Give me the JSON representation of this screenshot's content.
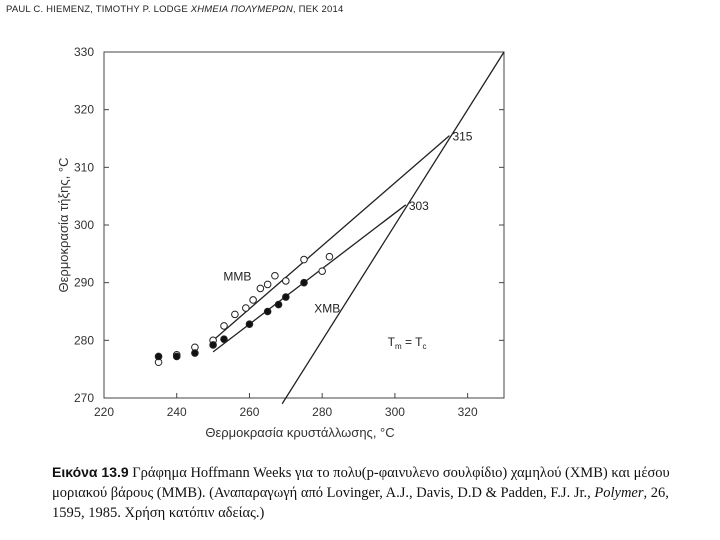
{
  "header": {
    "authors": "PAUL C. HIEMENZ, TIMOTHY P. LODGE ",
    "book_title": "ΧΗΜΕΙΑ ΠΟΛΥΜΕΡΩΝ",
    "publisher": ", ΠΕΚ 2014"
  },
  "chart_data": {
    "type": "scatter",
    "xlabel": "Θερμοκρασία κρυστάλλωσης, °C",
    "ylabel": "Θερμοκρασία τήξης, °C",
    "xlim": [
      220,
      330
    ],
    "ylim": [
      270,
      330
    ],
    "x_ticks": [
      220,
      240,
      260,
      280,
      300,
      320
    ],
    "y_ticks": [
      270,
      280,
      290,
      300,
      310,
      320,
      330
    ],
    "grid": false,
    "series": [
      {
        "name": "MMB",
        "marker": "open-circle",
        "points": [
          [
            235,
            276.2
          ],
          [
            240,
            277.5
          ],
          [
            245,
            278.8
          ],
          [
            250,
            280
          ],
          [
            253,
            282.5
          ],
          [
            256,
            284.5
          ],
          [
            259,
            285.6
          ],
          [
            261,
            287
          ],
          [
            263,
            289
          ],
          [
            265,
            289.7
          ],
          [
            267,
            291.2
          ],
          [
            270,
            290.3
          ],
          [
            275,
            294
          ],
          [
            280,
            292
          ],
          [
            282,
            294.5
          ]
        ]
      },
      {
        "name": "XMB",
        "marker": "filled-circle",
        "points": [
          [
            235,
            277.2
          ],
          [
            240,
            277.2
          ],
          [
            245,
            277.8
          ],
          [
            250,
            279.2
          ],
          [
            253,
            280.2
          ],
          [
            260,
            282.8
          ],
          [
            265,
            285
          ],
          [
            268,
            286.2
          ],
          [
            270,
            287.5
          ],
          [
            275,
            290
          ]
        ]
      }
    ],
    "lines": [
      {
        "name": "MMB",
        "from": [
          250,
          280
        ],
        "to": [
          315,
          315.5
        ]
      },
      {
        "name": "XMB",
        "from": [
          250,
          278
        ],
        "to": [
          303,
          303.5
        ]
      },
      {
        "name": "Tm = Tc",
        "from": [
          269,
          269
        ],
        "to": [
          330,
          330
        ]
      }
    ],
    "annotations": [
      {
        "text": "315",
        "x": 315,
        "y": 315.5
      },
      {
        "text": "303",
        "x": 303,
        "y": 303.5
      },
      {
        "text": "MMB",
        "x": 252,
        "y": 291.2
      },
      {
        "text": "XMB",
        "x": 277,
        "y": 285.7
      }
    ],
    "equation_label": {
      "lhs_main": "T",
      "lhs_sub": "m",
      "equals": " = ",
      "rhs_main": "T",
      "rhs_sub": "c",
      "x": 298,
      "y": 279
    }
  },
  "caption": {
    "label": "Εικόνα 13.9",
    "text_part1": " Γράφημα Hoffmann Weeks για το πολυ(p-φαινυλενο σουλφίδιο) χαμηλού (XMB) και μέσου μοριακού βάρους (MMB). (Αναπαραγωγή από Lovinger, A.J., Davis, D.D & Padden, F.J. Jr., ",
    "journal": "Polymer",
    "text_part2": ", 26, 1595, 1985. Χρήση κατόπιν αδείας.)"
  }
}
